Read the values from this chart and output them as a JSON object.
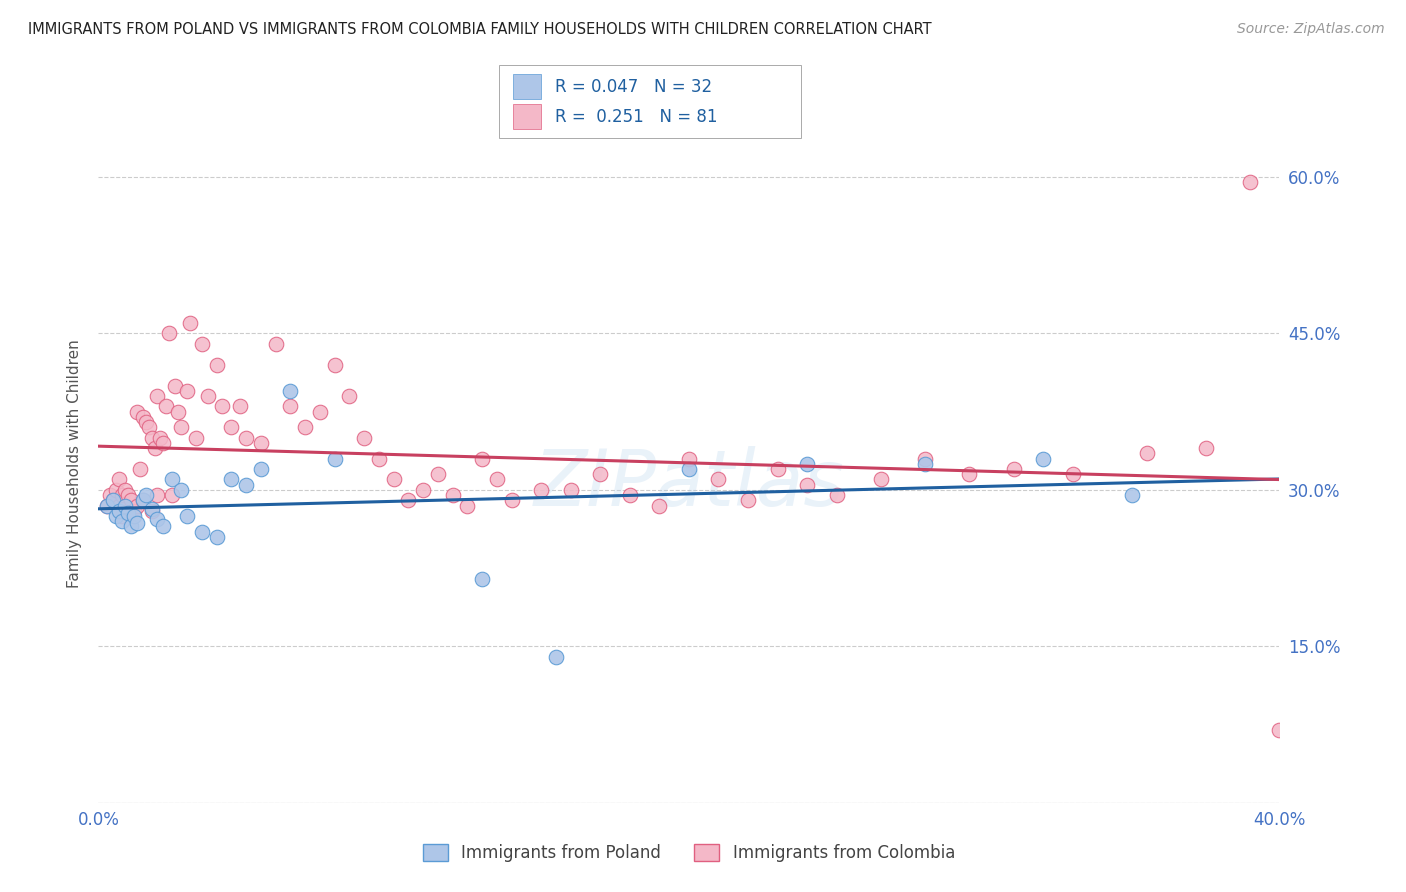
{
  "title": "IMMIGRANTS FROM POLAND VS IMMIGRANTS FROM COLOMBIA FAMILY HOUSEHOLDS WITH CHILDREN CORRELATION CHART",
  "source": "Source: ZipAtlas.com",
  "ylabel": "Family Households with Children",
  "xlim": [
    0.0,
    0.4
  ],
  "ylim": [
    0.0,
    0.65
  ],
  "yticks": [
    0.0,
    0.15,
    0.3,
    0.45,
    0.6
  ],
  "poland_color": "#aec6e8",
  "poland_edge_color": "#5b9bd5",
  "colombia_color": "#f4b8c8",
  "colombia_edge_color": "#e06080",
  "poland_R": 0.047,
  "poland_N": 32,
  "colombia_R": 0.251,
  "colombia_N": 81,
  "legend_label_poland": "Immigrants from Poland",
  "legend_label_colombia": "Immigrants from Colombia",
  "poland_line_color": "#2060a0",
  "colombia_line_color": "#c84060",
  "watermark": "ZIPatlas",
  "background_color": "#ffffff",
  "grid_color": "#cccccc",
  "poland_x": [
    0.003,
    0.005,
    0.006,
    0.007,
    0.008,
    0.009,
    0.01,
    0.011,
    0.012,
    0.013,
    0.015,
    0.016,
    0.018,
    0.02,
    0.022,
    0.025,
    0.028,
    0.03,
    0.035,
    0.04,
    0.045,
    0.05,
    0.055,
    0.065,
    0.08,
    0.13,
    0.155,
    0.2,
    0.24,
    0.28,
    0.32,
    0.35
  ],
  "poland_y": [
    0.285,
    0.29,
    0.275,
    0.28,
    0.27,
    0.285,
    0.278,
    0.265,
    0.275,
    0.268,
    0.29,
    0.295,
    0.282,
    0.272,
    0.265,
    0.31,
    0.3,
    0.275,
    0.26,
    0.255,
    0.31,
    0.305,
    0.32,
    0.395,
    0.33,
    0.215,
    0.14,
    0.32,
    0.325,
    0.325,
    0.33,
    0.295
  ],
  "colombia_x": [
    0.003,
    0.004,
    0.005,
    0.006,
    0.007,
    0.007,
    0.008,
    0.008,
    0.009,
    0.01,
    0.01,
    0.011,
    0.012,
    0.013,
    0.013,
    0.014,
    0.015,
    0.015,
    0.016,
    0.017,
    0.018,
    0.018,
    0.019,
    0.02,
    0.02,
    0.021,
    0.022,
    0.023,
    0.024,
    0.025,
    0.026,
    0.027,
    0.028,
    0.03,
    0.031,
    0.033,
    0.035,
    0.037,
    0.04,
    0.042,
    0.045,
    0.048,
    0.05,
    0.055,
    0.06,
    0.065,
    0.07,
    0.075,
    0.08,
    0.085,
    0.09,
    0.095,
    0.1,
    0.105,
    0.11,
    0.115,
    0.12,
    0.125,
    0.13,
    0.135,
    0.14,
    0.15,
    0.16,
    0.17,
    0.18,
    0.19,
    0.2,
    0.21,
    0.22,
    0.23,
    0.24,
    0.25,
    0.265,
    0.28,
    0.295,
    0.31,
    0.33,
    0.355,
    0.375,
    0.39,
    0.4
  ],
  "colombia_y": [
    0.285,
    0.295,
    0.29,
    0.3,
    0.285,
    0.31,
    0.275,
    0.295,
    0.3,
    0.28,
    0.295,
    0.29,
    0.28,
    0.285,
    0.375,
    0.32,
    0.37,
    0.29,
    0.365,
    0.36,
    0.35,
    0.28,
    0.34,
    0.295,
    0.39,
    0.35,
    0.345,
    0.38,
    0.45,
    0.295,
    0.4,
    0.375,
    0.36,
    0.395,
    0.46,
    0.35,
    0.44,
    0.39,
    0.42,
    0.38,
    0.36,
    0.38,
    0.35,
    0.345,
    0.44,
    0.38,
    0.36,
    0.375,
    0.42,
    0.39,
    0.35,
    0.33,
    0.31,
    0.29,
    0.3,
    0.315,
    0.295,
    0.285,
    0.33,
    0.31,
    0.29,
    0.3,
    0.3,
    0.315,
    0.295,
    0.285,
    0.33,
    0.31,
    0.29,
    0.32,
    0.305,
    0.295,
    0.31,
    0.33,
    0.315,
    0.32,
    0.315,
    0.335,
    0.34,
    0.595,
    0.07
  ]
}
